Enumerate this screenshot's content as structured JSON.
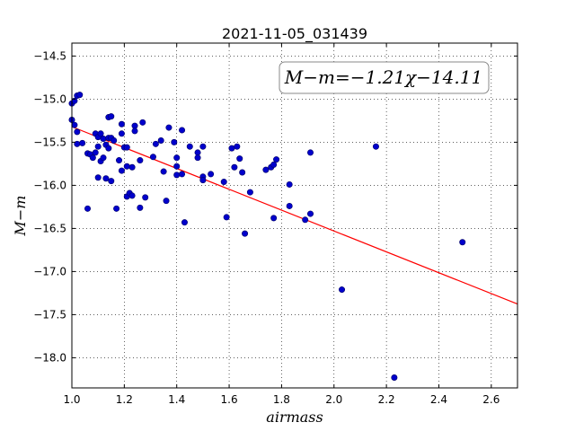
{
  "chart_data": {
    "type": "scatter",
    "title": "2021-11-05_031439",
    "xlabel": "airmass",
    "ylabel": "M−m",
    "xlim": [
      1.0,
      2.7
    ],
    "ylim": [
      -18.35,
      -14.35
    ],
    "y_inverted": true,
    "grid": true,
    "legend_placement": "top-right",
    "annotation": "M−m=−1.21χ−14.11",
    "x_ticks": [
      "1.0",
      "1.2",
      "1.4",
      "1.6",
      "1.8",
      "2.0",
      "2.2",
      "2.4",
      "2.6"
    ],
    "y_ticks": [
      "−14.5",
      "−15.0",
      "−15.5",
      "−16.0",
      "−16.5",
      "−17.0",
      "−17.5",
      "−18.0"
    ],
    "points_color": "#0000cc",
    "fit_color": "#ff0000",
    "fit": {
      "slope": -1.21,
      "intercept": -14.11
    },
    "points": [
      [
        1.0,
        -15.05
      ],
      [
        1.01,
        -15.02
      ],
      [
        1.02,
        -14.96
      ],
      [
        1.03,
        -14.95
      ],
      [
        1.0,
        -15.24
      ],
      [
        1.01,
        -15.3
      ],
      [
        1.02,
        -15.38
      ],
      [
        1.02,
        -15.52
      ],
      [
        1.04,
        -15.51
      ],
      [
        1.06,
        -15.63
      ],
      [
        1.06,
        -16.27
      ],
      [
        1.07,
        -15.64
      ],
      [
        1.08,
        -15.68
      ],
      [
        1.09,
        -15.62
      ],
      [
        1.09,
        -15.4
      ],
      [
        1.1,
        -15.44
      ],
      [
        1.1,
        -15.55
      ],
      [
        1.1,
        -15.91
      ],
      [
        1.11,
        -15.72
      ],
      [
        1.11,
        -15.4
      ],
      [
        1.12,
        -15.46
      ],
      [
        1.12,
        -15.68
      ],
      [
        1.13,
        -15.53
      ],
      [
        1.13,
        -15.92
      ],
      [
        1.14,
        -15.21
      ],
      [
        1.14,
        -15.57
      ],
      [
        1.14,
        -15.45
      ],
      [
        1.15,
        -15.2
      ],
      [
        1.15,
        -15.45
      ],
      [
        1.15,
        -15.95
      ],
      [
        1.16,
        -15.48
      ],
      [
        1.17,
        -16.27
      ],
      [
        1.18,
        -15.71
      ],
      [
        1.19,
        -15.29
      ],
      [
        1.19,
        -15.4
      ],
      [
        1.19,
        -15.83
      ],
      [
        1.2,
        -15.56
      ],
      [
        1.21,
        -15.56
      ],
      [
        1.21,
        -15.78
      ],
      [
        1.21,
        -16.13
      ],
      [
        1.22,
        -16.09
      ],
      [
        1.23,
        -15.79
      ],
      [
        1.23,
        -16.12
      ],
      [
        1.24,
        -15.31
      ],
      [
        1.24,
        -15.37
      ],
      [
        1.26,
        -15.71
      ],
      [
        1.26,
        -16.26
      ],
      [
        1.27,
        -15.27
      ],
      [
        1.28,
        -16.14
      ],
      [
        1.31,
        -15.67
      ],
      [
        1.32,
        -15.52
      ],
      [
        1.34,
        -15.48
      ],
      [
        1.35,
        -15.84
      ],
      [
        1.36,
        -16.18
      ],
      [
        1.37,
        -15.33
      ],
      [
        1.39,
        -15.5
      ],
      [
        1.4,
        -15.68
      ],
      [
        1.4,
        -15.78
      ],
      [
        1.4,
        -15.88
      ],
      [
        1.42,
        -15.87
      ],
      [
        1.42,
        -15.36
      ],
      [
        1.43,
        -16.43
      ],
      [
        1.45,
        -15.55
      ],
      [
        1.48,
        -15.62
      ],
      [
        1.48,
        -15.68
      ],
      [
        1.5,
        -15.55
      ],
      [
        1.5,
        -15.9
      ],
      [
        1.5,
        -15.94
      ],
      [
        1.53,
        -15.87
      ],
      [
        1.58,
        -15.96
      ],
      [
        1.59,
        -16.37
      ],
      [
        1.61,
        -15.57
      ],
      [
        1.62,
        -15.79
      ],
      [
        1.63,
        -15.55
      ],
      [
        1.64,
        -15.69
      ],
      [
        1.65,
        -15.85
      ],
      [
        1.66,
        -16.56
      ],
      [
        1.68,
        -16.08
      ],
      [
        1.74,
        -15.82
      ],
      [
        1.76,
        -15.79
      ],
      [
        1.77,
        -15.76
      ],
      [
        1.77,
        -16.38
      ],
      [
        1.78,
        -15.7
      ],
      [
        1.83,
        -15.99
      ],
      [
        1.83,
        -16.24
      ],
      [
        1.89,
        -16.4
      ],
      [
        1.91,
        -15.62
      ],
      [
        1.91,
        -16.33
      ],
      [
        2.03,
        -17.21
      ],
      [
        2.16,
        -15.55
      ],
      [
        2.23,
        -18.23
      ],
      [
        2.49,
        -16.66
      ]
    ]
  }
}
